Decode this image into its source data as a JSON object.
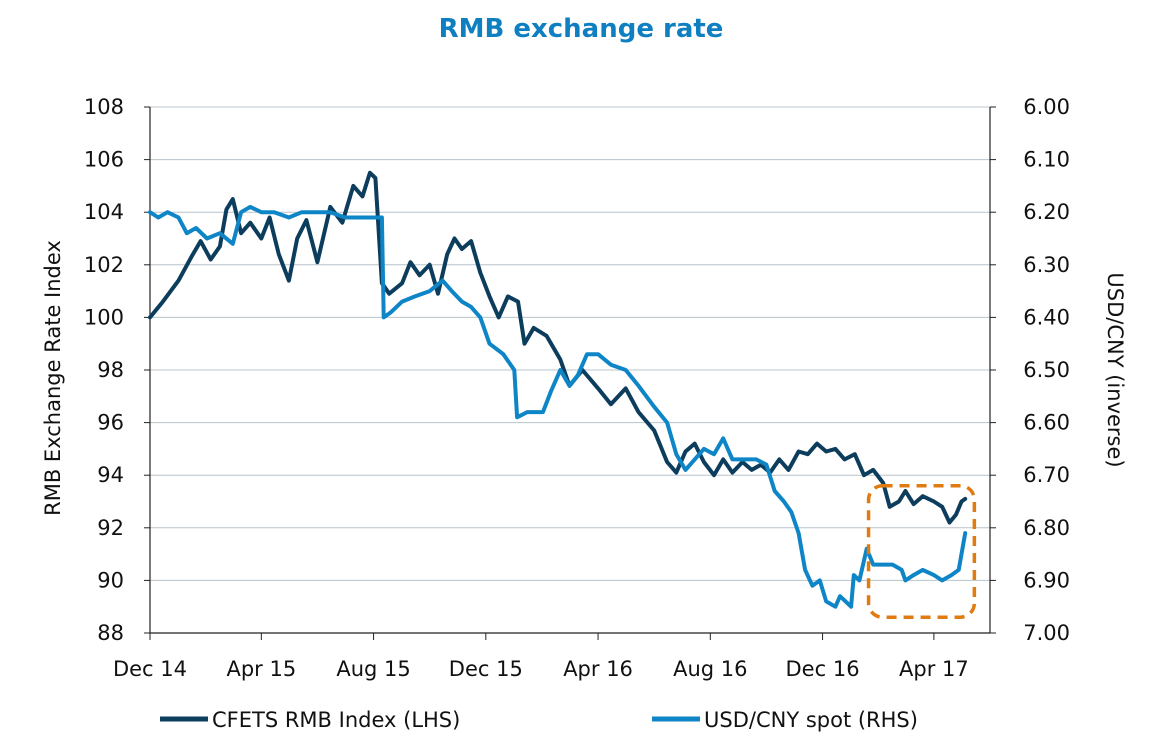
{
  "chart_data": {
    "type": "line",
    "title": "RMB exchange rate",
    "ylabel_left": "RMB Exchange Rate Index",
    "ylabel_right": "USD/CNY (inverse)",
    "ylim_left": [
      88,
      108
    ],
    "yticks_left": [
      "88",
      "90",
      "92",
      "94",
      "96",
      "98",
      "100",
      "102",
      "104",
      "106",
      "108"
    ],
    "ylim_right_inverse": [
      6.0,
      7.0
    ],
    "yticks_right": [
      "6.00",
      "6.10",
      "6.20",
      "6.30",
      "6.40",
      "6.50",
      "6.60",
      "6.70",
      "6.80",
      "6.90",
      "7.00"
    ],
    "x_range": [
      "2014-12-01",
      "2017-06-01"
    ],
    "x_ticks": [
      {
        "label": "Dec 14",
        "date": "2014-12-01"
      },
      {
        "label": "Apr 15",
        "date": "2015-04-01"
      },
      {
        "label": "Aug 15",
        "date": "2015-08-01"
      },
      {
        "label": "Dec 15",
        "date": "2015-12-01"
      },
      {
        "label": "Apr 16",
        "date": "2016-04-01"
      },
      {
        "label": "Aug 16",
        "date": "2016-08-01"
      },
      {
        "label": "Dec 16",
        "date": "2016-12-01"
      },
      {
        "label": "Apr 17",
        "date": "2017-04-01"
      }
    ],
    "grid": true,
    "legend_position": "bottom",
    "series": [
      {
        "name": "CFETS RMB Index (LHS)",
        "axis": "left",
        "color": "#0d3d5c",
        "points": [
          [
            "2014-12-01",
            100.0
          ],
          [
            "2014-12-15",
            100.6
          ],
          [
            "2015-01-01",
            101.4
          ],
          [
            "2015-01-15",
            102.3
          ],
          [
            "2015-01-25",
            102.9
          ],
          [
            "2015-02-05",
            102.2
          ],
          [
            "2015-02-15",
            102.7
          ],
          [
            "2015-02-22",
            104.1
          ],
          [
            "2015-03-01",
            104.5
          ],
          [
            "2015-03-10",
            103.2
          ],
          [
            "2015-03-20",
            103.6
          ],
          [
            "2015-04-01",
            103.0
          ],
          [
            "2015-04-10",
            103.8
          ],
          [
            "2015-04-20",
            102.4
          ],
          [
            "2015-05-01",
            101.4
          ],
          [
            "2015-05-10",
            103.0
          ],
          [
            "2015-05-20",
            103.7
          ],
          [
            "2015-06-01",
            102.1
          ],
          [
            "2015-06-15",
            104.2
          ],
          [
            "2015-06-28",
            103.6
          ],
          [
            "2015-07-10",
            105.0
          ],
          [
            "2015-07-20",
            104.6
          ],
          [
            "2015-07-28",
            105.5
          ],
          [
            "2015-08-03",
            105.3
          ],
          [
            "2015-08-10",
            101.3
          ],
          [
            "2015-08-18",
            100.9
          ],
          [
            "2015-09-01",
            101.3
          ],
          [
            "2015-09-10",
            102.1
          ],
          [
            "2015-09-20",
            101.6
          ],
          [
            "2015-10-01",
            102.0
          ],
          [
            "2015-10-10",
            100.9
          ],
          [
            "2015-10-20",
            102.4
          ],
          [
            "2015-10-28",
            103.0
          ],
          [
            "2015-11-05",
            102.6
          ],
          [
            "2015-11-15",
            102.9
          ],
          [
            "2015-11-25",
            101.7
          ],
          [
            "2015-12-05",
            100.8
          ],
          [
            "2015-12-15",
            100.0
          ],
          [
            "2015-12-25",
            100.8
          ],
          [
            "2016-01-05",
            100.6
          ],
          [
            "2016-01-12",
            99.0
          ],
          [
            "2016-01-22",
            99.6
          ],
          [
            "2016-02-05",
            99.3
          ],
          [
            "2016-02-20",
            98.4
          ],
          [
            "2016-03-01",
            97.4
          ],
          [
            "2016-03-15",
            98.0
          ],
          [
            "2016-04-01",
            97.3
          ],
          [
            "2016-04-15",
            96.7
          ],
          [
            "2016-05-01",
            97.3
          ],
          [
            "2016-05-15",
            96.4
          ],
          [
            "2016-06-01",
            95.7
          ],
          [
            "2016-06-15",
            94.5
          ],
          [
            "2016-06-25",
            94.1
          ],
          [
            "2016-07-05",
            94.9
          ],
          [
            "2016-07-15",
            95.2
          ],
          [
            "2016-07-25",
            94.5
          ],
          [
            "2016-08-05",
            94.0
          ],
          [
            "2016-08-15",
            94.6
          ],
          [
            "2016-08-25",
            94.1
          ],
          [
            "2016-09-05",
            94.5
          ],
          [
            "2016-09-15",
            94.2
          ],
          [
            "2016-09-25",
            94.4
          ],
          [
            "2016-10-05",
            94.1
          ],
          [
            "2016-10-15",
            94.6
          ],
          [
            "2016-10-25",
            94.2
          ],
          [
            "2016-11-05",
            94.9
          ],
          [
            "2016-11-15",
            94.8
          ],
          [
            "2016-11-25",
            95.2
          ],
          [
            "2016-12-05",
            94.9
          ],
          [
            "2016-12-15",
            95.0
          ],
          [
            "2016-12-25",
            94.6
          ],
          [
            "2017-01-05",
            94.8
          ],
          [
            "2017-01-15",
            94.0
          ],
          [
            "2017-01-25",
            94.2
          ],
          [
            "2017-02-05",
            93.7
          ],
          [
            "2017-02-12",
            92.8
          ],
          [
            "2017-02-22",
            93.0
          ],
          [
            "2017-03-01",
            93.4
          ],
          [
            "2017-03-10",
            92.9
          ],
          [
            "2017-03-20",
            93.2
          ],
          [
            "2017-04-01",
            93.0
          ],
          [
            "2017-04-10",
            92.8
          ],
          [
            "2017-04-18",
            92.2
          ],
          [
            "2017-04-25",
            92.5
          ],
          [
            "2017-05-01",
            93.0
          ],
          [
            "2017-05-05",
            93.1
          ]
        ]
      },
      {
        "name": "USD/CNY spot (RHS)",
        "axis": "right",
        "color": "#0e85c6",
        "points": [
          [
            "2014-12-01",
            6.2
          ],
          [
            "2014-12-10",
            6.21
          ],
          [
            "2014-12-20",
            6.2
          ],
          [
            "2015-01-01",
            6.21
          ],
          [
            "2015-01-10",
            6.24
          ],
          [
            "2015-01-20",
            6.23
          ],
          [
            "2015-02-01",
            6.25
          ],
          [
            "2015-02-15",
            6.24
          ],
          [
            "2015-03-01",
            6.26
          ],
          [
            "2015-03-10",
            6.2
          ],
          [
            "2015-03-20",
            6.19
          ],
          [
            "2015-04-01",
            6.2
          ],
          [
            "2015-04-15",
            6.2
          ],
          [
            "2015-05-01",
            6.21
          ],
          [
            "2015-05-15",
            6.2
          ],
          [
            "2015-06-01",
            6.2
          ],
          [
            "2015-06-15",
            6.2
          ],
          [
            "2015-07-01",
            6.21
          ],
          [
            "2015-07-15",
            6.21
          ],
          [
            "2015-08-10",
            6.21
          ],
          [
            "2015-08-12",
            6.4
          ],
          [
            "2015-08-20",
            6.39
          ],
          [
            "2015-09-01",
            6.37
          ],
          [
            "2015-09-15",
            6.36
          ],
          [
            "2015-10-01",
            6.35
          ],
          [
            "2015-10-15",
            6.33
          ],
          [
            "2015-10-25",
            6.35
          ],
          [
            "2015-11-05",
            6.37
          ],
          [
            "2015-11-15",
            6.38
          ],
          [
            "2015-11-25",
            6.4
          ],
          [
            "2015-12-05",
            6.45
          ],
          [
            "2015-12-20",
            6.47
          ],
          [
            "2016-01-01",
            6.5
          ],
          [
            "2016-01-04",
            6.59
          ],
          [
            "2016-01-15",
            6.58
          ],
          [
            "2016-02-01",
            6.58
          ],
          [
            "2016-02-10",
            6.54
          ],
          [
            "2016-02-20",
            6.5
          ],
          [
            "2016-03-01",
            6.53
          ],
          [
            "2016-03-10",
            6.51
          ],
          [
            "2016-03-20",
            6.47
          ],
          [
            "2016-04-01",
            6.47
          ],
          [
            "2016-04-15",
            6.49
          ],
          [
            "2016-05-01",
            6.5
          ],
          [
            "2016-05-15",
            6.53
          ],
          [
            "2016-06-01",
            6.57
          ],
          [
            "2016-06-15",
            6.6
          ],
          [
            "2016-06-25",
            6.66
          ],
          [
            "2016-07-05",
            6.69
          ],
          [
            "2016-07-15",
            6.67
          ],
          [
            "2016-07-25",
            6.65
          ],
          [
            "2016-08-05",
            6.66
          ],
          [
            "2016-08-15",
            6.63
          ],
          [
            "2016-08-25",
            6.67
          ],
          [
            "2016-09-05",
            6.67
          ],
          [
            "2016-09-20",
            6.67
          ],
          [
            "2016-10-01",
            6.68
          ],
          [
            "2016-10-10",
            6.73
          ],
          [
            "2016-10-20",
            6.75
          ],
          [
            "2016-10-28",
            6.77
          ],
          [
            "2016-11-05",
            6.81
          ],
          [
            "2016-11-12",
            6.88
          ],
          [
            "2016-11-20",
            6.91
          ],
          [
            "2016-11-28",
            6.9
          ],
          [
            "2016-12-05",
            6.94
          ],
          [
            "2016-12-15",
            6.95
          ],
          [
            "2016-12-20",
            6.93
          ],
          [
            "2017-01-01",
            6.95
          ],
          [
            "2017-01-04",
            6.89
          ],
          [
            "2017-01-10",
            6.9
          ],
          [
            "2017-01-18",
            6.84
          ],
          [
            "2017-01-25",
            6.87
          ],
          [
            "2017-02-05",
            6.87
          ],
          [
            "2017-02-15",
            6.87
          ],
          [
            "2017-02-25",
            6.88
          ],
          [
            "2017-03-01",
            6.9
          ],
          [
            "2017-03-10",
            6.89
          ],
          [
            "2017-03-20",
            6.88
          ],
          [
            "2017-04-01",
            6.89
          ],
          [
            "2017-04-10",
            6.9
          ],
          [
            "2017-04-20",
            6.89
          ],
          [
            "2017-04-28",
            6.88
          ],
          [
            "2017-05-05",
            6.81
          ]
        ]
      }
    ],
    "annotation": {
      "type": "dashed-rectangle",
      "color": "#e07b10",
      "x_from": "2017-01-20",
      "x_to": "2017-05-15",
      "ylim_left": [
        88.6,
        93.6
      ]
    }
  }
}
